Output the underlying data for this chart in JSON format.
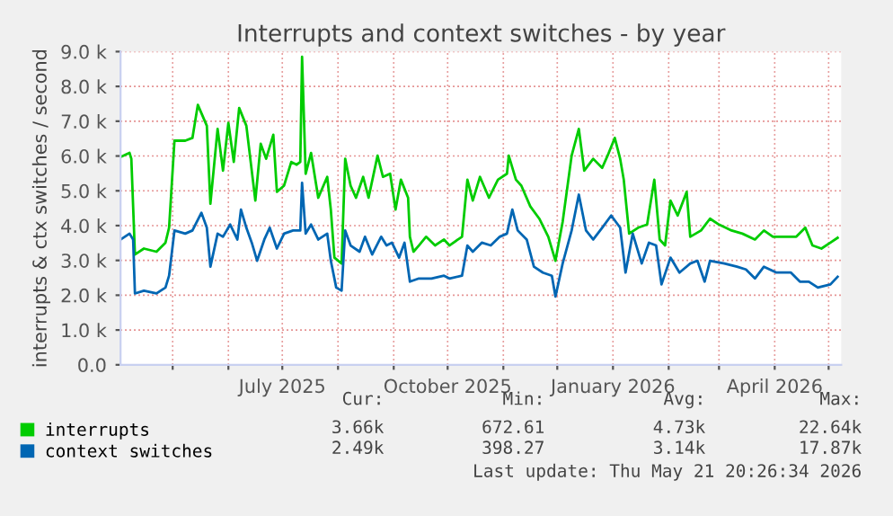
{
  "chart_data": {
    "type": "line",
    "title": "Interrupts and context switches - by year",
    "ylabel": "interrupts & ctx switches / second",
    "xlim": [
      "2025-04-02",
      "2026-05-08"
    ],
    "xticks": [
      {
        "value": "2025-05-01",
        "label": null
      },
      {
        "value": "2025-06-01",
        "label": null
      },
      {
        "value": "2025-07-01",
        "label": "July 2025"
      },
      {
        "value": "2025-08-01",
        "label": null
      },
      {
        "value": "2025-09-01",
        "label": null
      },
      {
        "value": "2025-10-01",
        "label": "October 2025"
      },
      {
        "value": "2025-11-01",
        "label": null
      },
      {
        "value": "2025-12-01",
        "label": null
      },
      {
        "value": "2026-01-01",
        "label": "January 2026"
      },
      {
        "value": "2026-02-01",
        "label": null
      },
      {
        "value": "2026-03-01",
        "label": null
      },
      {
        "value": "2026-04-01",
        "label": "April 2026"
      },
      {
        "value": "2026-05-01",
        "label": null
      }
    ],
    "ylim": [
      0,
      9000
    ],
    "yticks": [
      {
        "value": 0,
        "label": "0.0"
      },
      {
        "value": 1000,
        "label": "1.0 k"
      },
      {
        "value": 2000,
        "label": "2.0 k"
      },
      {
        "value": 3000,
        "label": "3.0 k"
      },
      {
        "value": 4000,
        "label": "4.0 k"
      },
      {
        "value": 5000,
        "label": "5.0 k"
      },
      {
        "value": 6000,
        "label": "6.0 k"
      },
      {
        "value": 7000,
        "label": "7.0 k"
      },
      {
        "value": 8000,
        "label": "8.0 k"
      },
      {
        "value": 9000,
        "label": "9.0 k"
      }
    ],
    "grid": true,
    "legend": "bottom left",
    "series": [
      {
        "name": "interrupts",
        "color": "#00cc00",
        "x": [
          "2025-04-02",
          "2025-04-07",
          "2025-04-08",
          "2025-04-10",
          "2025-04-15",
          "2025-04-22",
          "2025-04-27",
          "2025-04-29",
          "2025-05-02",
          "2025-05-08",
          "2025-05-12",
          "2025-05-15",
          "2025-05-20",
          "2025-05-22",
          "2025-05-26",
          "2025-05-29",
          "2025-06-01",
          "2025-06-04",
          "2025-06-07",
          "2025-06-11",
          "2025-06-16",
          "2025-06-19",
          "2025-06-22",
          "2025-06-26",
          "2025-06-28",
          "2025-07-02",
          "2025-07-06",
          "2025-07-09",
          "2025-07-11",
          "2025-07-12",
          "2025-07-14",
          "2025-07-17",
          "2025-07-21",
          "2025-07-26",
          "2025-07-28",
          "2025-07-30",
          "2025-08-03",
          "2025-08-05",
          "2025-08-08",
          "2025-08-11",
          "2025-08-15",
          "2025-08-18",
          "2025-08-23",
          "2025-08-26",
          "2025-08-30",
          "2025-09-02",
          "2025-09-05",
          "2025-09-09",
          "2025-09-10",
          "2025-09-12",
          "2025-09-15",
          "2025-09-19",
          "2025-09-24",
          "2025-09-29",
          "2025-10-02",
          "2025-10-09",
          "2025-10-12",
          "2025-10-15",
          "2025-10-19",
          "2025-10-24",
          "2025-10-29",
          "2025-11-03",
          "2025-11-04",
          "2025-11-08",
          "2025-11-11",
          "2025-11-16",
          "2025-11-21",
          "2025-11-26",
          "2025-11-30",
          "2025-12-04",
          "2025-12-09",
          "2025-12-13",
          "2025-12-16",
          "2025-12-21",
          "2025-12-26",
          "2025-12-29",
          "2026-01-02",
          "2026-01-05",
          "2026-01-07",
          "2026-01-10",
          "2026-01-15",
          "2026-01-20",
          "2026-01-24",
          "2026-01-27",
          "2026-01-30",
          "2026-02-02",
          "2026-02-06",
          "2026-02-11",
          "2026-02-13",
          "2026-02-19",
          "2026-02-24",
          "2026-03-01",
          "2026-03-08",
          "2026-03-14",
          "2026-03-21",
          "2026-03-26",
          "2026-03-31",
          "2026-04-07",
          "2026-04-13",
          "2026-04-18",
          "2026-04-22",
          "2026-04-27",
          "2026-05-02",
          "2026-05-06"
        ],
        "values": [
          5970,
          6090,
          5920,
          3170,
          3340,
          3250,
          3510,
          3940,
          6440,
          6440,
          6520,
          7470,
          6870,
          4630,
          6780,
          5580,
          6950,
          5830,
          7380,
          6870,
          4720,
          6350,
          5920,
          6610,
          4970,
          5150,
          5830,
          5750,
          5830,
          8850,
          5490,
          6090,
          4800,
          5400,
          4460,
          3080,
          2910,
          5920,
          5150,
          4800,
          5400,
          4800,
          6010,
          5400,
          5490,
          4460,
          5320,
          4800,
          3680,
          3250,
          3430,
          3680,
          3430,
          3600,
          3430,
          3680,
          5320,
          4720,
          5400,
          4800,
          5320,
          5490,
          6010,
          5320,
          5150,
          4550,
          4200,
          3680,
          2990,
          4110,
          6010,
          6780,
          5580,
          5920,
          5660,
          6010,
          6520,
          5920,
          5320,
          3770,
          3940,
          4030,
          5320,
          3600,
          3430,
          4720,
          4290,
          4970,
          3680,
          3860,
          4200,
          4030,
          3860,
          3770,
          3600,
          3860,
          3680,
          3680,
          3680,
          3940,
          3430,
          3340,
          3510,
          3650
        ]
      },
      {
        "name": "context switches",
        "color": "#0066b3",
        "x": [
          "2025-04-02",
          "2025-04-07",
          "2025-04-09",
          "2025-04-10",
          "2025-04-15",
          "2025-04-22",
          "2025-04-27",
          "2025-04-29",
          "2025-05-02",
          "2025-05-08",
          "2025-05-12",
          "2025-05-17",
          "2025-05-20",
          "2025-05-22",
          "2025-05-26",
          "2025-05-29",
          "2025-06-02",
          "2025-06-06",
          "2025-06-08",
          "2025-06-11",
          "2025-06-14",
          "2025-06-17",
          "2025-06-21",
          "2025-06-24",
          "2025-06-28",
          "2025-07-02",
          "2025-07-07",
          "2025-07-11",
          "2025-07-12",
          "2025-07-14",
          "2025-07-17",
          "2025-07-21",
          "2025-07-26",
          "2025-07-28",
          "2025-07-31",
          "2025-08-03",
          "2025-08-05",
          "2025-08-08",
          "2025-08-13",
          "2025-08-16",
          "2025-08-20",
          "2025-08-25",
          "2025-08-28",
          "2025-08-31",
          "2025-09-04",
          "2025-09-07",
          "2025-09-10",
          "2025-09-15",
          "2025-09-22",
          "2025-09-29",
          "2025-10-02",
          "2025-10-09",
          "2025-10-12",
          "2025-10-15",
          "2025-10-20",
          "2025-10-25",
          "2025-10-30",
          "2025-11-03",
          "2025-11-06",
          "2025-11-09",
          "2025-11-14",
          "2025-11-18",
          "2025-11-23",
          "2025-11-28",
          "2025-11-30",
          "2025-12-04",
          "2025-12-09",
          "2025-12-13",
          "2025-12-17",
          "2025-12-21",
          "2025-12-26",
          "2025-12-31",
          "2026-01-05",
          "2026-01-08",
          "2026-01-12",
          "2026-01-17",
          "2026-01-21",
          "2026-01-25",
          "2026-01-28",
          "2026-02-02",
          "2026-02-07",
          "2026-02-13",
          "2026-02-17",
          "2026-02-21",
          "2026-02-24",
          "2026-03-04",
          "2026-03-11",
          "2026-03-16",
          "2026-03-21",
          "2026-03-26",
          "2026-04-02",
          "2026-04-10",
          "2026-04-15",
          "2026-04-20",
          "2026-04-25",
          "2026-05-02",
          "2026-05-06"
        ],
        "values": [
          3600,
          3770,
          3600,
          2050,
          2130,
          2050,
          2220,
          2560,
          3860,
          3770,
          3860,
          4370,
          3940,
          2820,
          3770,
          3680,
          4030,
          3600,
          4460,
          3940,
          3510,
          2990,
          3600,
          3940,
          3340,
          3770,
          3860,
          3860,
          5230,
          3770,
          4030,
          3600,
          3770,
          2990,
          2220,
          2130,
          3860,
          3430,
          3250,
          3680,
          3170,
          3680,
          3430,
          3510,
          3080,
          3510,
          2390,
          2480,
          2480,
          2560,
          2480,
          2560,
          3430,
          3250,
          3510,
          3430,
          3680,
          3770,
          4460,
          3860,
          3600,
          2820,
          2650,
          2560,
          1960,
          2910,
          3860,
          4890,
          3860,
          3600,
          3940,
          4290,
          3940,
          2650,
          3770,
          2910,
          3510,
          3430,
          2310,
          3080,
          2650,
          2910,
          2990,
          2390,
          2990,
          2910,
          2820,
          2740,
          2480,
          2820,
          2650,
          2650,
          2390,
          2390,
          2220,
          2310,
          2530
        ]
      }
    ],
    "annotations": [
      "Cur:",
      "Min:",
      "Avg:",
      "Max:",
      "3.66k",
      "672.61",
      "4.73k",
      "22.64k",
      "2.49k",
      "398.27",
      "3.14k",
      "17.87k",
      "Last update: Thu May 21 20:26:34 2026"
    ]
  }
}
